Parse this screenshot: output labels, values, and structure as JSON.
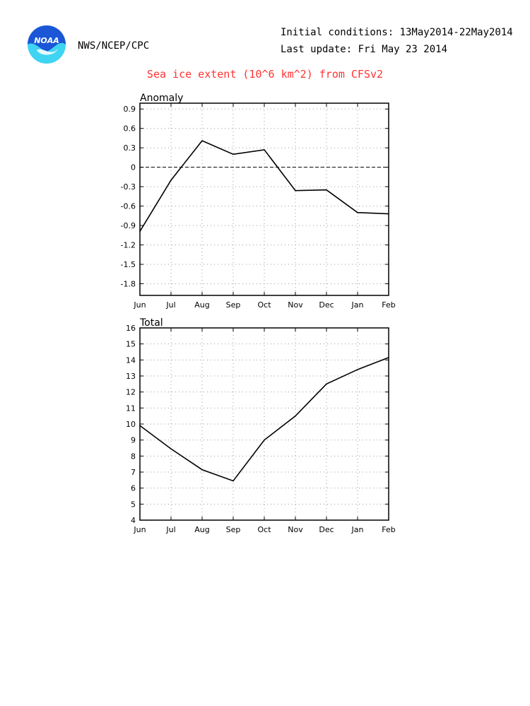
{
  "header": {
    "org": "NWS/NCEP/CPC",
    "initial_conditions": "Initial conditions: 13May2014-22May2014",
    "last_update": "Last update: Fri May 23 2014",
    "logo_text": "NOAA"
  },
  "title": "Sea ice extent (10^6 km^2) from CFSv2",
  "colors": {
    "title": "#ff3333",
    "logo_blue": "#1a56d6",
    "logo_cyan": "#3fd4f2"
  },
  "chart_data": [
    {
      "type": "line",
      "title": "Anomaly",
      "categories": [
        "Jun",
        "Jul",
        "Aug",
        "Sep",
        "Oct",
        "Nov",
        "Dec",
        "Jan",
        "Feb"
      ],
      "values": [
        -0.99,
        -0.2,
        0.41,
        0.2,
        0.27,
        -0.36,
        -0.35,
        -0.7,
        -0.72
      ],
      "ylim": [
        -1.98,
        0.99
      ],
      "yticks": [
        0.9,
        0.6,
        0.3,
        0,
        -0.3,
        -0.6,
        -0.9,
        -1.2,
        -1.5,
        -1.8
      ],
      "ytick_labels": [
        "0.9",
        "0.6",
        "0.3",
        "0",
        "-0.3",
        "-0.6",
        "-0.9",
        "-1.2",
        "-1.5",
        "-1.8"
      ],
      "zero_line": "dashed",
      "grid": true
    },
    {
      "type": "line",
      "title": "Total",
      "categories": [
        "Jun",
        "Jul",
        "Aug",
        "Sep",
        "Oct",
        "Nov",
        "Dec",
        "Jan",
        "Feb"
      ],
      "values": [
        9.9,
        8.45,
        7.15,
        6.45,
        9.0,
        10.5,
        12.5,
        13.4,
        14.15
      ],
      "ylim": [
        4,
        16
      ],
      "yticks": [
        16,
        15,
        14,
        13,
        12,
        11,
        10,
        9,
        8,
        7,
        6,
        5,
        4
      ],
      "ytick_labels": [
        "16",
        "15",
        "14",
        "13",
        "12",
        "11",
        "10",
        "9",
        "8",
        "7",
        "6",
        "5",
        "4"
      ],
      "grid": true
    }
  ]
}
